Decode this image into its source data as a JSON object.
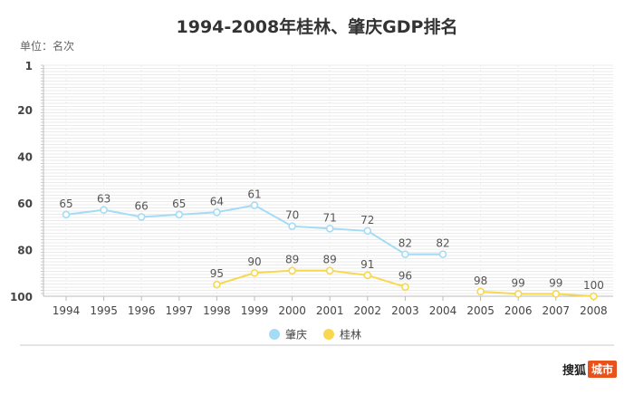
{
  "unit_label": "单位：名次",
  "chart_data": {
    "type": "line",
    "title": "1994-2008年桂林、肇庆GDP排名",
    "x": [
      "1994",
      "1995",
      "1996",
      "1997",
      "1998",
      "1999",
      "2000",
      "2001",
      "2002",
      "2003",
      "2004",
      "2005",
      "2006",
      "2007",
      "2008"
    ],
    "y_axis": {
      "ticks": [
        1,
        20,
        40,
        60,
        80,
        100
      ],
      "range": [
        1,
        100
      ],
      "inverted": true
    },
    "grid": true,
    "legend_position": "bottom-center",
    "series": [
      {
        "name": "肇庆",
        "color": "#a4dcf5",
        "values": [
          65,
          63,
          66,
          65,
          64,
          61,
          70,
          71,
          72,
          82,
          82,
          null,
          null,
          null,
          null
        ]
      },
      {
        "name": "桂林",
        "color": "#f7d84e",
        "values": [
          null,
          null,
          null,
          null,
          95,
          90,
          89,
          89,
          91,
          96,
          null,
          98,
          99,
          99,
          100
        ]
      }
    ]
  },
  "watermark": {
    "part1": "搜狐",
    "part2": "城市"
  }
}
